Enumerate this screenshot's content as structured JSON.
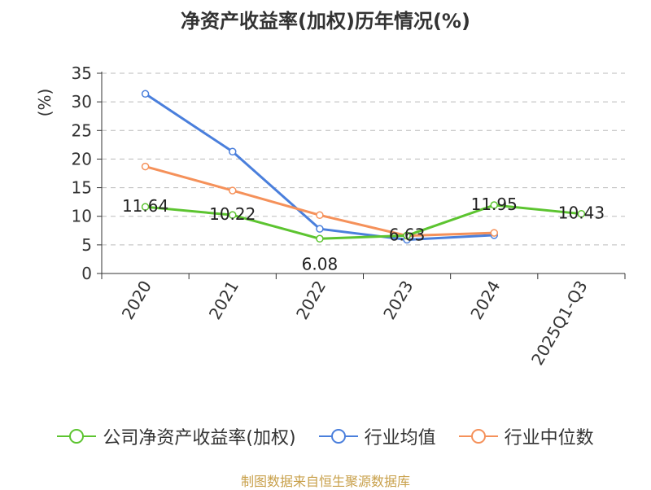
{
  "title": "净资产收益率(加权)历年情况(%)",
  "source": "制图数据来自恒生聚源数据库",
  "chart_data": {
    "type": "line",
    "title": "净资产收益率(加权)历年情况(%)",
    "ylabel": "(%)",
    "categories": [
      "2020",
      "2021",
      "2022",
      "2023",
      "2024",
      "2025Q1-Q3"
    ],
    "ylim": [
      0,
      35
    ],
    "yticks": [
      0,
      5,
      10,
      15,
      20,
      25,
      30,
      35
    ],
    "grid": true,
    "legend_position": "bottom",
    "series": [
      {
        "name": "公司净资产收益率(加权)",
        "color": "#5cc430",
        "values": [
          11.64,
          10.22,
          6.08,
          6.63,
          11.95,
          10.43
        ],
        "labels": [
          "11.64",
          "10.22",
          "6.08",
          "6.63",
          "11.95",
          "10.43"
        ]
      },
      {
        "name": "行业均值",
        "color": "#4a7fdc",
        "values": [
          31.4,
          21.3,
          7.8,
          5.9,
          6.7,
          null
        ]
      },
      {
        "name": "行业中位数",
        "color": "#f5915a",
        "values": [
          18.7,
          14.5,
          10.2,
          6.6,
          7.1,
          null
        ]
      }
    ]
  }
}
